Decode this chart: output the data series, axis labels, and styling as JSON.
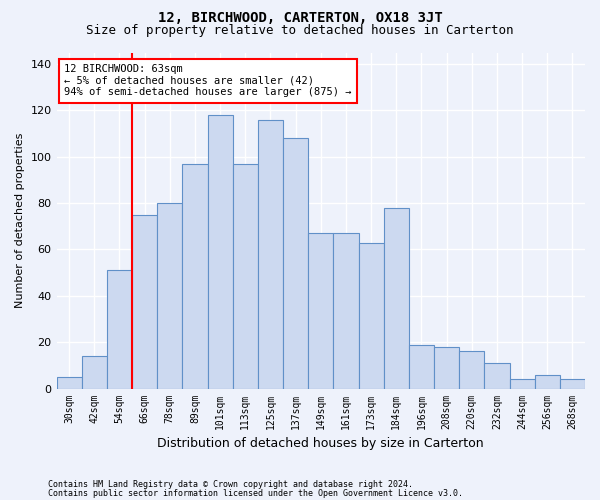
{
  "title": "12, BIRCHWOOD, CARTERTON, OX18 3JT",
  "subtitle": "Size of property relative to detached houses in Carterton",
  "xlabel": "Distribution of detached houses by size in Carterton",
  "ylabel": "Number of detached properties",
  "tick_labels": [
    "30sqm",
    "42sqm",
    "54sqm",
    "66sqm",
    "78sqm",
    "89sqm",
    "101sqm",
    "113sqm",
    "125sqm",
    "137sqm",
    "149sqm",
    "161sqm",
    "173sqm",
    "184sqm",
    "196sqm",
    "208sqm",
    "220sqm",
    "232sqm",
    "244sqm",
    "256sqm",
    "268sqm"
  ],
  "bar_heights": [
    5,
    14,
    51,
    75,
    80,
    97,
    118,
    97,
    116,
    108,
    67,
    67,
    63,
    78,
    19,
    18,
    16,
    11,
    4,
    6,
    4
  ],
  "bar_color": "#ccd9f0",
  "bar_edge_color": "#6090c8",
  "red_line_index": 2.5,
  "annotation_text": "12 BIRCHWOOD: 63sqm\n← 5% of detached houses are smaller (42)\n94% of semi-detached houses are larger (875) →",
  "ylim": [
    0,
    145
  ],
  "yticks": [
    0,
    20,
    40,
    60,
    80,
    100,
    120,
    140
  ],
  "footnote1": "Contains HM Land Registry data © Crown copyright and database right 2024.",
  "footnote2": "Contains public sector information licensed under the Open Government Licence v3.0.",
  "bg_color": "#eef2fb",
  "grid_color": "#ffffff",
  "title_fontsize": 10,
  "subtitle_fontsize": 9,
  "axis_label_fontsize": 8,
  "tick_fontsize": 7,
  "annot_fontsize": 7.5
}
